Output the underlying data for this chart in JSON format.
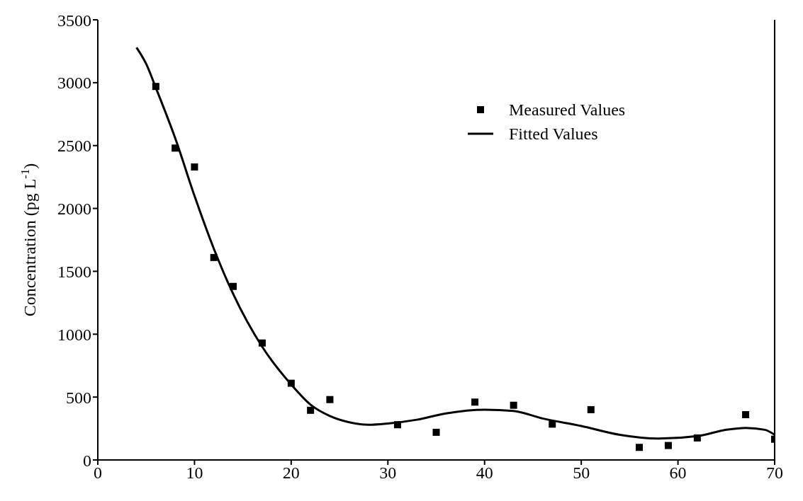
{
  "chart_data": {
    "type": "scatter",
    "ylabel": "Concentration (pg L$^{-1}$)",
    "xlim": [
      0,
      70
    ],
    "xticks": [
      0,
      10,
      20,
      30,
      40,
      50,
      60,
      70
    ],
    "ylim": [
      0,
      3500
    ],
    "yticks": [
      0,
      500,
      1000,
      1500,
      2000,
      2500,
      3000,
      3500
    ],
    "grid": false,
    "legend": "top right",
    "series": [
      {
        "name": "Measured Values",
        "marker": "square",
        "color": "#000000",
        "x": [
          6,
          8,
          10,
          12,
          14,
          17,
          20,
          22,
          24,
          31,
          35,
          39,
          43,
          47,
          51,
          56,
          59,
          62,
          67,
          70
        ],
        "values": [
          2970,
          2480,
          2330,
          1610,
          1380,
          930,
          610,
          395,
          480,
          280,
          220,
          460,
          435,
          285,
          400,
          100,
          115,
          175,
          360,
          165
        ]
      },
      {
        "name": "Fitted Values",
        "type": "line",
        "marker": "none",
        "line_style": "solid",
        "color": "#000000",
        "x": [
          4,
          5,
          6,
          8,
          10,
          12,
          14,
          17,
          20,
          22,
          24,
          26,
          28,
          30,
          33,
          36,
          40,
          43,
          46,
          50,
          54,
          58,
          62,
          65,
          67,
          69,
          70
        ],
        "values": [
          3280,
          3150,
          2960,
          2560,
          2100,
          1680,
          1320,
          900,
          600,
          440,
          350,
          300,
          280,
          290,
          320,
          370,
          400,
          390,
          330,
          270,
          200,
          170,
          190,
          240,
          255,
          240,
          200
        ]
      }
    ]
  }
}
